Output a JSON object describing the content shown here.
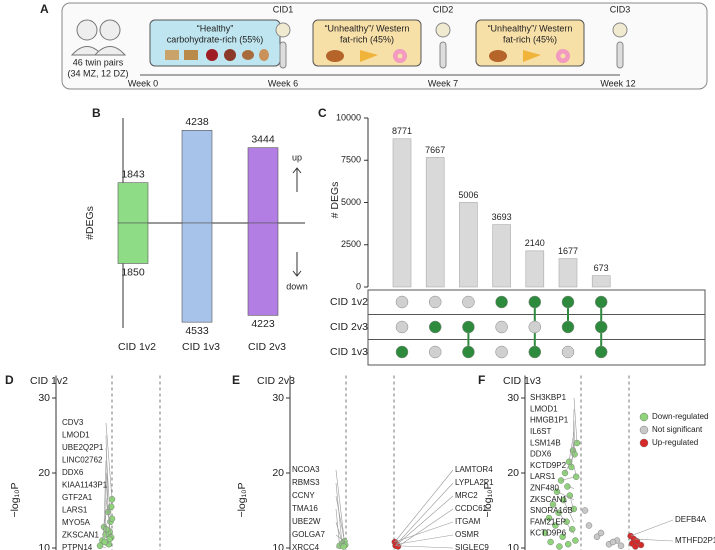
{
  "panel_a": {
    "label": "A",
    "cohort": [
      "46 twin pairs",
      "(34 MZ, 12 DZ)"
    ],
    "diets": [
      [
        "“Healthy”",
        "carbohydrate-rich (55%)"
      ],
      [
        "“Unhealthy”/ Western",
        "fat-rich (45%)"
      ],
      [
        "“Unhealthy”/ Western",
        "fat-rich (45%)"
      ]
    ],
    "samples": [
      "CID1",
      "CID2",
      "CID3"
    ],
    "weeks": [
      "Week 0",
      "Week 6",
      "Week 7",
      "Week 12"
    ]
  },
  "chart_data": [
    {
      "panel": "B",
      "type": "diverging_bar",
      "ylabel": "#DEGs",
      "categories": [
        "CID 1v2",
        "CID 1v3",
        "CID 2v3"
      ],
      "colors": [
        "#8fdc86",
        "#a8c3ea",
        "#b27ee3"
      ],
      "series": [
        {
          "name": "up",
          "values": [
            1843,
            4238,
            3444
          ]
        },
        {
          "name": "down",
          "values": [
            1850,
            4533,
            4223
          ]
        }
      ],
      "ylim": [
        -4800,
        4800
      ]
    },
    {
      "panel": "C",
      "type": "upset",
      "ylabel": "# DEGs",
      "values": [
        8771,
        7667,
        5006,
        3693,
        2140,
        1677,
        673
      ],
      "color": "#d9d9d9",
      "ylim": [
        0,
        10000
      ],
      "yticks": [
        0,
        2500,
        5000,
        7500,
        10000
      ],
      "sets": [
        "CID 1v2",
        "CID 2v3",
        "CID 1v3"
      ],
      "membership": [
        [
          0,
          0,
          0,
          1,
          1,
          1,
          1
        ],
        [
          0,
          1,
          1,
          0,
          0,
          1,
          1
        ],
        [
          1,
          0,
          1,
          0,
          1,
          0,
          1
        ]
      ],
      "on_color": "#2e8b3e",
      "off_color": "#d0d0d0"
    },
    {
      "panel": "D",
      "type": "volcano",
      "title": "CID 1v2",
      "ylabel": "−log₁₀P",
      "ylim": [
        10,
        33
      ],
      "yticks": [
        10,
        20,
        30
      ],
      "xlim": [
        -1,
        1
      ],
      "thresholds": [
        -0.3,
        0.3
      ],
      "labels_left": [
        "CDV3",
        "LMOD1",
        "UBE2Q2P1",
        "LINC02762",
        "DDX6",
        "KIAA1143P1",
        "GTF2A1",
        "LARS1",
        "MYO5A",
        "ZKSCAN1",
        "PTPN14"
      ],
      "labels_right": [],
      "series": [
        {
          "color": "#8fd47a",
          "x": [
            -0.3,
            -0.35,
            -0.32,
            -0.4,
            -0.33,
            -0.38,
            -0.31,
            -0.42,
            -0.36,
            -0.34,
            -0.45,
            -0.3,
            -0.37,
            -0.33,
            -0.39,
            -0.31
          ],
          "values": [
            16.5,
            14.8,
            13.5,
            12.8,
            12.2,
            11.8,
            11.4,
            11,
            10.7,
            10.5,
            10.3,
            13.9,
            12.5,
            11.2,
            10.8,
            15.5
          ]
        }
      ]
    },
    {
      "panel": "E",
      "type": "volcano",
      "title": "CID 2v3",
      "ylabel": "−log₁₀P",
      "ylim": [
        10,
        33
      ],
      "yticks": [
        10,
        20,
        30
      ],
      "xlim": [
        -1,
        1
      ],
      "thresholds": [
        -0.3,
        0.3
      ],
      "labels_left": [
        "NCOA3",
        "RBMS3",
        "CCNY",
        "TMA16",
        "UBE2W",
        "GOLGA7",
        "XRCC4"
      ],
      "labels_right": [
        "LAMTOR4",
        "LYPLA2P1",
        "MRC2",
        "CCDC61",
        "ITGAM",
        "OSMR",
        "SIGLEC9"
      ],
      "series": [
        {
          "color": "#8fd47a",
          "x": [
            -0.32,
            -0.35,
            -0.31,
            -0.38,
            -0.33
          ],
          "values": [
            10.9,
            10.6,
            10.4,
            10.3,
            10.2
          ]
        },
        {
          "color": "#d62a2a",
          "x": [
            0.31,
            0.33,
            0.32,
            0.35
          ],
          "values": [
            10.8,
            10.5,
            10.3,
            10.2
          ]
        }
      ]
    },
    {
      "panel": "F",
      "type": "volcano",
      "title": "CID 1v3",
      "ylabel": "−log₁₀P",
      "ylim": [
        10,
        33
      ],
      "yticks": [
        10,
        20,
        30
      ],
      "xlim": [
        -1,
        1
      ],
      "thresholds": [
        -0.3,
        0.3
      ],
      "labels_left": [
        "SH3KBP1",
        "LMOD1",
        "HMGB1P1",
        "IL6ST",
        "LSM14B",
        "DDX6",
        "KCTD9P2",
        "LARS1",
        "ZNF480",
        "ZKSCAN1",
        "SNORA16B",
        "FAM21EP",
        "KCTD9P6"
      ],
      "labels_right": [
        "DEFB4A",
        "MTHFD2P1"
      ],
      "legend": true,
      "series": [
        {
          "name": "Down-regulated",
          "color": "#8fd47a",
          "x": [
            -0.35,
            -0.4,
            -0.38,
            -0.45,
            -0.42,
            -0.5,
            -0.36,
            -0.55,
            -0.47,
            -0.6,
            -0.44,
            -0.52,
            -0.65,
            -0.39,
            -0.58,
            -0.7,
            -0.48,
            -0.62,
            -0.41,
            -0.75,
            -0.53,
            -0.37,
            -0.68,
            -0.46,
            -0.57
          ],
          "values": [
            24,
            23,
            22.5,
            21.5,
            20.8,
            20,
            19.5,
            19,
            18.2,
            17.5,
            17,
            16.4,
            15.8,
            15.2,
            14.7,
            14,
            13.5,
            13,
            12.5,
            12,
            11.5,
            11,
            10.8,
            10.5,
            10.2
          ]
        },
        {
          "name": "Not significant",
          "color": "#c8c8c8",
          "x": [
            -0.2,
            -0.1,
            0.05,
            0.15,
            -0.25,
            0.2,
            -0.05,
            0.1
          ],
          "values": [
            13,
            11.5,
            10.5,
            11,
            15,
            10.3,
            12,
            10.8
          ]
        },
        {
          "name": "Up-regulated",
          "color": "#d62a2a",
          "x": [
            0.32,
            0.36,
            0.4,
            0.34,
            0.45,
            0.38
          ],
          "values": [
            11.6,
            11.2,
            10.9,
            10.6,
            10.4,
            10.2
          ]
        }
      ]
    }
  ]
}
